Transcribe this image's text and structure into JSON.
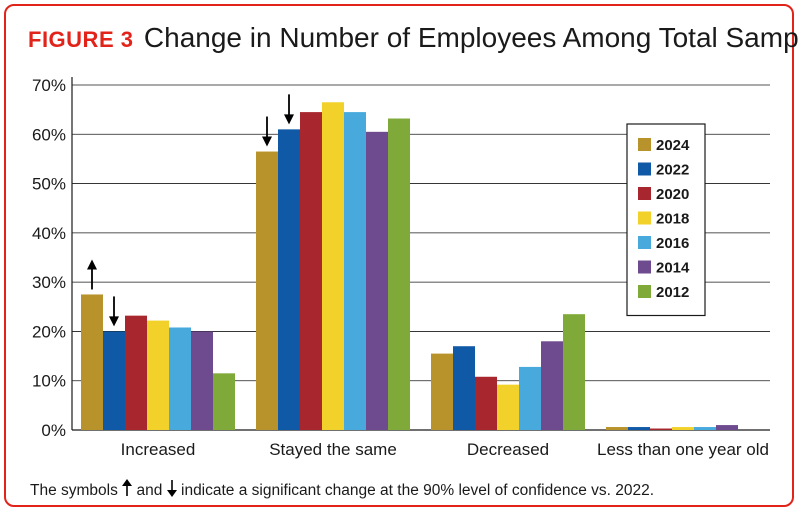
{
  "figure": {
    "label": "FIGURE 3",
    "title": "Change in Number of Employees Among Total Sample"
  },
  "footnote": {
    "before": "The symbols",
    "middle": "and",
    "after": "indicate a significant change at the 90% level of confidence vs. 2022.",
    "up_icon": "up-arrow-icon",
    "down_icon": "down-arrow-icon"
  },
  "chart_data": {
    "type": "bar",
    "title": "Change in Number of Employees Among Total Sample",
    "xlabel": "",
    "ylabel": "",
    "ylim": [
      0,
      70
    ],
    "yticks": [
      0,
      10,
      20,
      30,
      40,
      50,
      60,
      70
    ],
    "ytick_labels": [
      "0%",
      "10%",
      "20%",
      "30%",
      "40%",
      "50%",
      "60%",
      "70%"
    ],
    "grid": true,
    "legend_position": "right",
    "categories": [
      "Increased",
      "Stayed the same",
      "Decreased",
      "Less than one year old"
    ],
    "series": [
      {
        "name": "2024",
        "color": "#b8922a",
        "values": [
          27.5,
          56.5,
          15.5,
          0.6
        ]
      },
      {
        "name": "2022",
        "color": "#1059a6",
        "values": [
          20,
          61,
          17,
          0.6
        ]
      },
      {
        "name": "2020",
        "color": "#a8262e",
        "values": [
          23.2,
          64.5,
          10.8,
          0.3
        ]
      },
      {
        "name": "2018",
        "color": "#f2d22a",
        "values": [
          22.2,
          66.5,
          9.2,
          0.6
        ]
      },
      {
        "name": "2016",
        "color": "#48a9dd",
        "values": [
          20.8,
          64.5,
          12.8,
          0.6
        ]
      },
      {
        "name": "2014",
        "color": "#6e4b8e",
        "values": [
          20,
          60.5,
          18,
          1.0
        ]
      },
      {
        "name": "2012",
        "color": "#7faa3a",
        "values": [
          11.5,
          63.2,
          23.5,
          0
        ]
      }
    ],
    "significance": [
      {
        "category": "Increased",
        "series": "2024",
        "direction": "up"
      },
      {
        "category": "Increased",
        "series": "2022",
        "direction": "down"
      },
      {
        "category": "Stayed the same",
        "series": "2024",
        "direction": "down"
      },
      {
        "category": "Stayed the same",
        "series": "2022",
        "direction": "down"
      }
    ]
  }
}
